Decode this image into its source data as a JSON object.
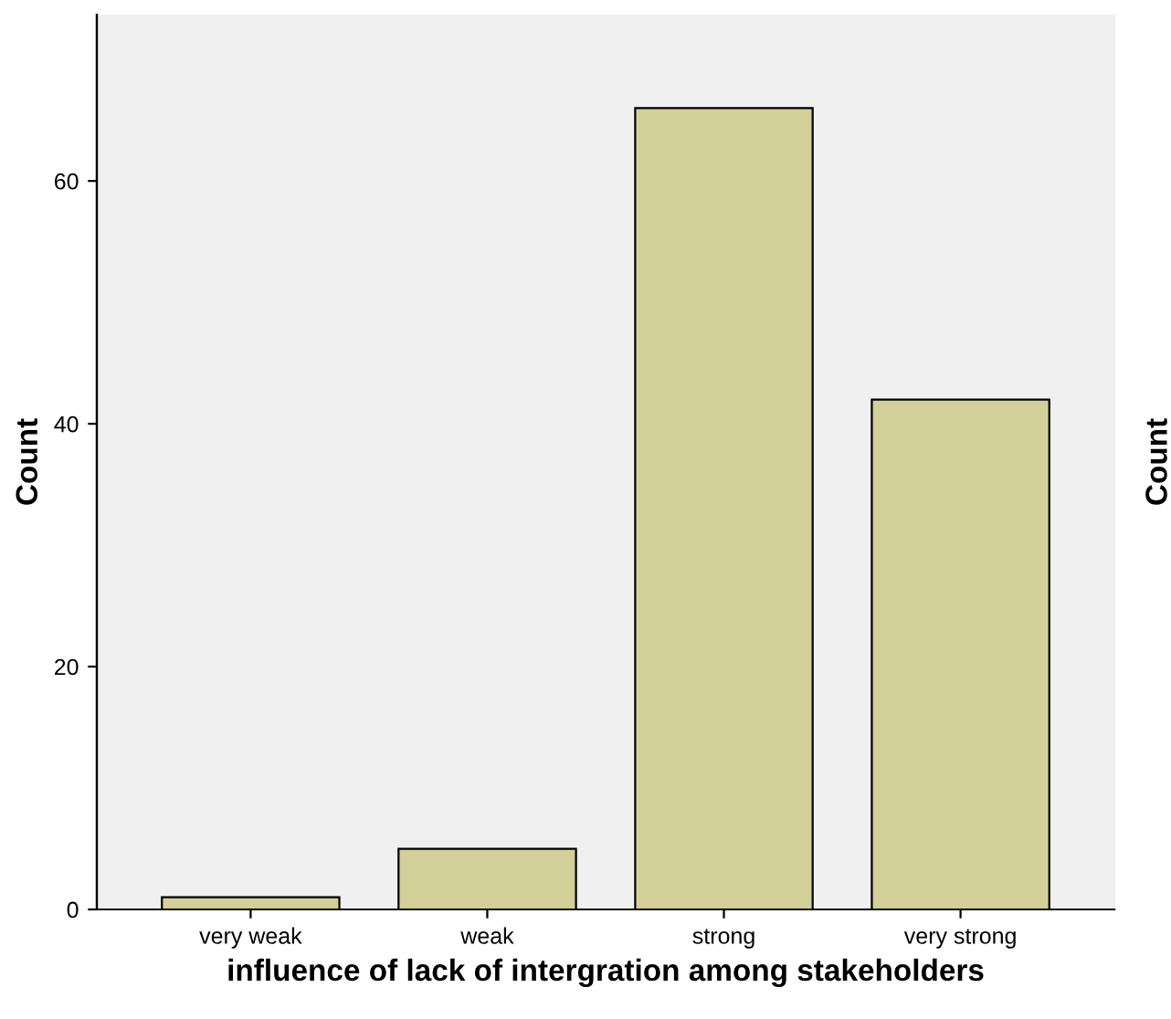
{
  "chart_data": {
    "type": "bar",
    "categories": [
      "very weak",
      "weak",
      "strong",
      "very strong"
    ],
    "values": [
      1,
      5,
      66,
      42
    ],
    "color": "#d3cf98",
    "xlabel": "influence of lack of intergration among stakeholders",
    "ylabel": "Count",
    "y2label": "Count",
    "ylim": [
      0,
      73.7
    ],
    "yticks": [
      0,
      20,
      40,
      60
    ],
    "grid": false,
    "legend": false
  }
}
